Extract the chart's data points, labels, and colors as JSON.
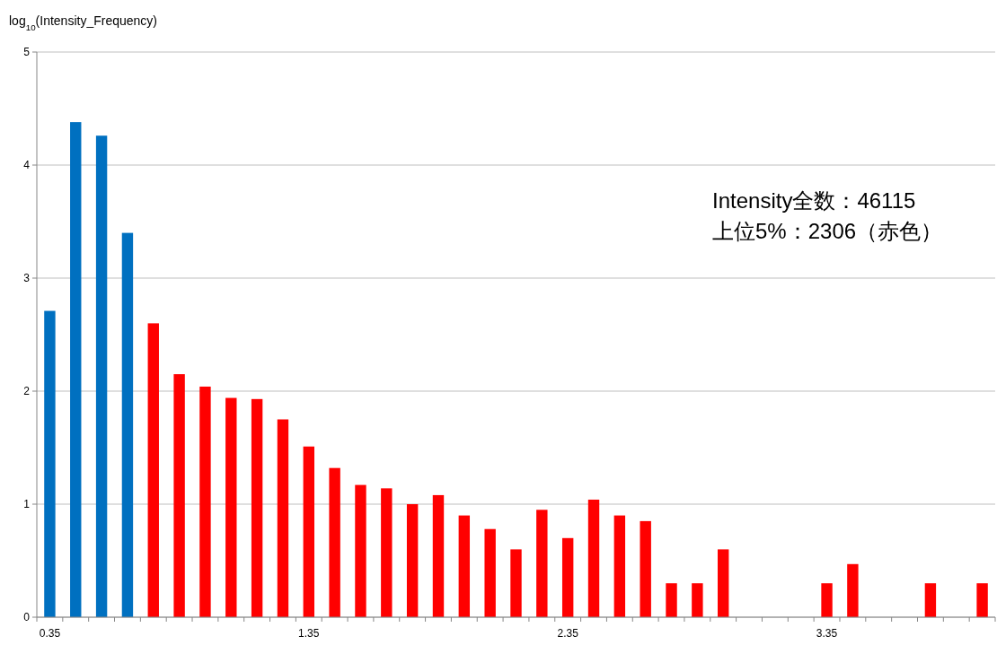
{
  "chart_data": {
    "type": "bar",
    "ylabel": "log$_{10}$(Intensity_Frequency)",
    "categories": [
      "0.35",
      null,
      null,
      null,
      null,
      null,
      null,
      null,
      null,
      null,
      "1.35",
      null,
      null,
      null,
      null,
      null,
      null,
      null,
      null,
      null,
      "2.35",
      null,
      null,
      null,
      null,
      null,
      null,
      null,
      null,
      null,
      "3.35",
      null,
      null,
      null,
      null,
      null,
      null
    ],
    "values": [
      2.71,
      4.38,
      4.26,
      3.4,
      2.6,
      2.15,
      2.04,
      1.94,
      1.93,
      1.75,
      1.51,
      1.32,
      1.17,
      1.14,
      1.0,
      1.08,
      0.9,
      0.78,
      0.6,
      0.95,
      0.7,
      1.04,
      0.9,
      0.85,
      0.3,
      0.3,
      0.6,
      0,
      0,
      0,
      0.3,
      0.47,
      0,
      0,
      0.3,
      0,
      0.3
    ],
    "colors": [
      "#0070c0",
      "#0070c0",
      "#0070c0",
      "#0070c0",
      "#ff0000",
      "#ff0000",
      "#ff0000",
      "#ff0000",
      "#ff0000",
      "#ff0000",
      "#ff0000",
      "#ff0000",
      "#ff0000",
      "#ff0000",
      "#ff0000",
      "#ff0000",
      "#ff0000",
      "#ff0000",
      "#ff0000",
      "#ff0000",
      "#ff0000",
      "#ff0000",
      "#ff0000",
      "#ff0000",
      "#ff0000",
      "#ff0000",
      "#ff0000",
      "#ff0000",
      "#ff0000",
      "#ff0000",
      "#ff0000",
      "#ff0000",
      "#ff0000",
      "#ff0000",
      "#ff0000",
      "#ff0000",
      "#ff0000"
    ],
    "ylim": [
      0,
      5
    ],
    "yticks": [
      0,
      1,
      2,
      3,
      4,
      5
    ],
    "grid": "y",
    "annotations": [
      "Intensity全数：46115",
      "上位5%：2306（赤色）"
    ]
  }
}
